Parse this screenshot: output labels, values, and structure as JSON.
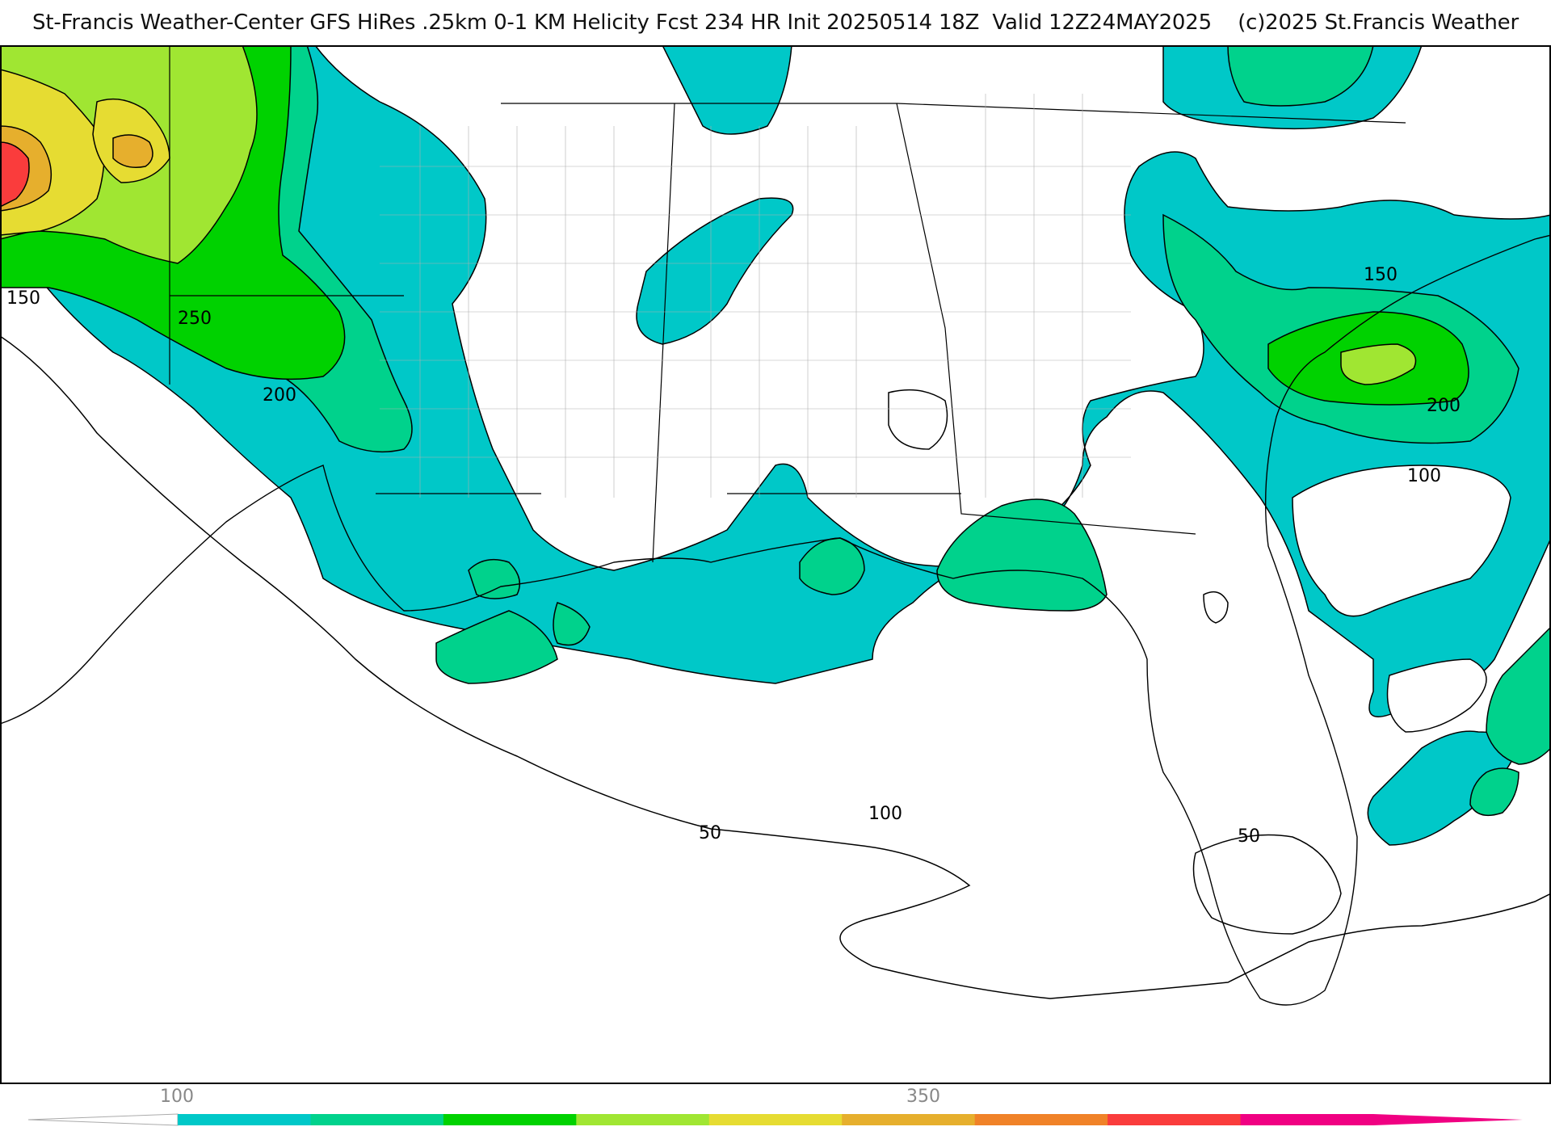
{
  "header": {
    "title": "St-Francis Weather-Center GFS HiRes .25km 0-1 KM Helicity Fcst 234 HR Init 20250514 18Z  Valid 12Z24MAY2025    (c)2025 St.Francis Weather"
  },
  "map": {
    "field": "0-1 KM Helicity",
    "contour_labels": [
      "150",
      "250",
      "200",
      "150",
      "200",
      "100",
      "100",
      "50",
      "50"
    ]
  },
  "legend": {
    "tick_labels": [
      "100",
      "350"
    ],
    "colors": [
      "#00c8c8",
      "#00d28c",
      "#00d200",
      "#a0e632",
      "#e6dc32",
      "#e6af2d",
      "#f08228",
      "#fa3c3c",
      "#f00082"
    ]
  }
}
